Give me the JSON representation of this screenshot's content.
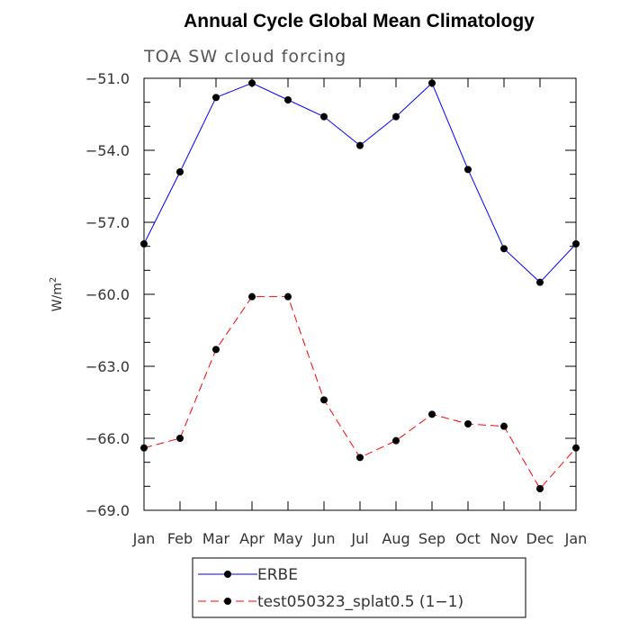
{
  "chart_data": {
    "type": "line",
    "title": "Annual Cycle Global Mean Climatology",
    "subtitle": "TOA SW cloud forcing",
    "ylabel": "W/m",
    "ylabel_superscript": "2",
    "xlabel": "",
    "categories": [
      "Jan",
      "Feb",
      "Mar",
      "Apr",
      "May",
      "Jun",
      "Jul",
      "Aug",
      "Sep",
      "Oct",
      "Nov",
      "Dec",
      "Jan"
    ],
    "ylim": [
      -69.0,
      -51.0
    ],
    "yticks": [
      -51.0,
      -54.0,
      -57.0,
      -60.0,
      -63.0,
      -66.0,
      -69.0
    ],
    "ytick_labels": [
      "−51.0",
      "−54.0",
      "−57.0",
      "−60.0",
      "−63.0",
      "−66.0",
      "−69.0"
    ],
    "grid": false,
    "legend_position": "bottom-center",
    "series": [
      {
        "name": "ERBE",
        "color": "#0000ff",
        "dash": "solid",
        "values": [
          -57.9,
          -54.9,
          -51.8,
          -51.2,
          -51.9,
          -52.6,
          -53.8,
          -52.6,
          -51.2,
          -54.8,
          -58.1,
          -59.5,
          -57.9
        ]
      },
      {
        "name": "test050323_splat0.5 (1−1)",
        "color": "#ff0000",
        "dash": "dashed",
        "values": [
          -66.4,
          -66.0,
          -62.3,
          -60.1,
          -60.1,
          -64.4,
          -66.8,
          -66.1,
          -65.0,
          -65.4,
          -65.5,
          -68.1,
          -66.4
        ]
      }
    ]
  }
}
